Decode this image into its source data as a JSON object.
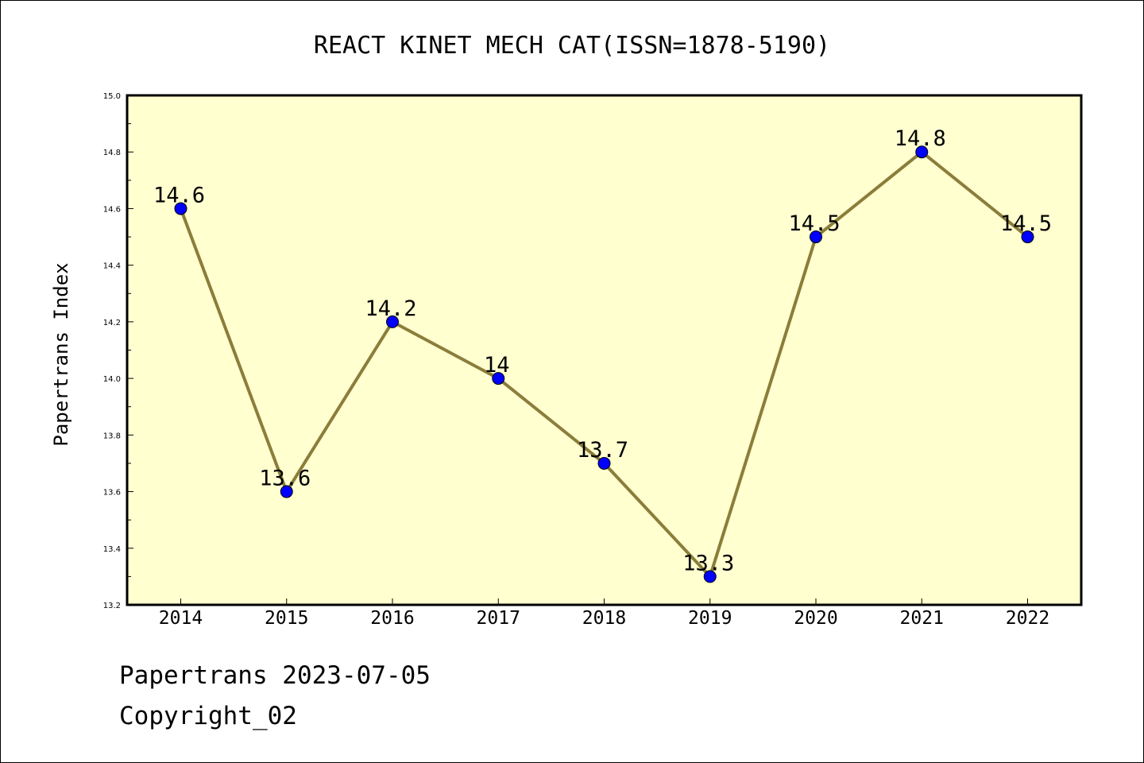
{
  "chart_data": {
    "type": "line",
    "title": "REACT KINET MECH CAT(ISSN=1878-5190)",
    "xlabel": "",
    "ylabel": "Papertrans Index",
    "x": [
      "2014",
      "2015",
      "2016",
      "2017",
      "2018",
      "2019",
      "2020",
      "2021",
      "2022"
    ],
    "values": [
      14.6,
      13.6,
      14.2,
      14.0,
      13.7,
      13.3,
      14.5,
      14.8,
      14.5
    ],
    "data_labels": [
      "14.6",
      "13.6",
      "14.2",
      "14",
      "13.7",
      "13.3",
      "14.5",
      "14.8",
      "14.5"
    ],
    "ylim": [
      13.2,
      15.0
    ],
    "yticks": [
      "13.2",
      "13.4",
      "13.6",
      "13.8",
      "14.0",
      "14.2",
      "14.4",
      "14.6",
      "14.8",
      "15.0"
    ],
    "grid": false,
    "legend": "none",
    "colors": {
      "plot_background": "#ffffd0",
      "line": "#8b7d3a",
      "marker": "#0000ff"
    }
  },
  "footer": {
    "line1": "Papertrans 2023-07-05",
    "line2": "Copyright_02"
  }
}
